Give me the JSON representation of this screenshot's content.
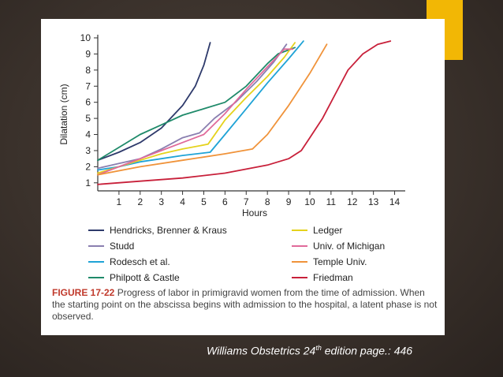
{
  "slide": {
    "citation_prefix": "Williams Obstetrics 24",
    "citation_sup": "th",
    "citation_suffix": " edition  page.: 446",
    "accent_color": "#f2b705"
  },
  "figure": {
    "label": "FIGURE 17-22",
    "caption": "Progress of labor in primigravid women from the time of admission. When the starting point on the abscissa begins with admission to the hospital, a latent phase is not observed."
  },
  "chart_data": {
    "type": "line",
    "xlabel": "Hours",
    "ylabel": "Dilatation (cm)",
    "xlim": [
      0,
      14.5
    ],
    "ylim": [
      0.5,
      10
    ],
    "x_ticks": [
      1,
      2,
      3,
      4,
      5,
      6,
      7,
      8,
      9,
      10,
      11,
      12,
      13,
      14
    ],
    "y_ticks": [
      1,
      2,
      3,
      4,
      5,
      6,
      7,
      8,
      9,
      10
    ],
    "grid": false,
    "legend_position": "bottom",
    "series": [
      {
        "name": "Hendricks, Brenner & Kraus",
        "color": "#2e3a6b",
        "points": [
          [
            0,
            2.4
          ],
          [
            1,
            2.9
          ],
          [
            2,
            3.5
          ],
          [
            3,
            4.4
          ],
          [
            4,
            5.8
          ],
          [
            4.6,
            7.0
          ],
          [
            5.0,
            8.3
          ],
          [
            5.3,
            9.7
          ]
        ]
      },
      {
        "name": "Studd",
        "color": "#8a7fb0",
        "points": [
          [
            0,
            1.9
          ],
          [
            1,
            2.2
          ],
          [
            2,
            2.5
          ],
          [
            3,
            3.1
          ],
          [
            4,
            3.8
          ],
          [
            4.8,
            4.1
          ],
          [
            5.5,
            5.0
          ],
          [
            6.5,
            6.0
          ],
          [
            7.5,
            7.3
          ],
          [
            8.3,
            8.5
          ],
          [
            8.9,
            9.6
          ]
        ]
      },
      {
        "name": "Rodesch et al.",
        "color": "#1fa3d6",
        "points": [
          [
            0,
            1.8
          ],
          [
            1,
            2.0
          ],
          [
            2,
            2.3
          ],
          [
            3,
            2.5
          ],
          [
            4,
            2.7
          ],
          [
            5.3,
            2.9
          ],
          [
            6,
            4.0
          ],
          [
            7,
            5.6
          ],
          [
            8,
            7.2
          ],
          [
            9,
            8.7
          ],
          [
            9.7,
            9.8
          ]
        ]
      },
      {
        "name": "Philpott & Castle",
        "color": "#1f8a6a",
        "points": [
          [
            0,
            2.4
          ],
          [
            1,
            3.2
          ],
          [
            2,
            4.0
          ],
          [
            3,
            4.6
          ],
          [
            4,
            5.2
          ],
          [
            5,
            5.6
          ],
          [
            6,
            6.0
          ],
          [
            7,
            7.0
          ],
          [
            8,
            8.4
          ],
          [
            8.5,
            9.0
          ],
          [
            9.3,
            9.4
          ]
        ]
      },
      {
        "name": "Ledger",
        "color": "#e5d21c",
        "points": [
          [
            0,
            1.6
          ],
          [
            1,
            2.0
          ],
          [
            2,
            2.4
          ],
          [
            3,
            2.8
          ],
          [
            4,
            3.1
          ],
          [
            5.2,
            3.4
          ],
          [
            6,
            4.9
          ],
          [
            7,
            6.3
          ],
          [
            8,
            7.6
          ],
          [
            8.8,
            8.8
          ],
          [
            9.3,
            9.7
          ]
        ]
      },
      {
        "name": "Univ. of Michigan",
        "color": "#e06a9a",
        "points": [
          [
            0,
            1.5
          ],
          [
            1,
            2.0
          ],
          [
            2,
            2.5
          ],
          [
            3,
            3.0
          ],
          [
            4,
            3.5
          ],
          [
            5,
            4.0
          ],
          [
            6,
            5.3
          ],
          [
            7,
            6.8
          ],
          [
            8,
            8.2
          ],
          [
            8.8,
            9.3
          ],
          [
            9.2,
            9.3
          ]
        ]
      },
      {
        "name": "Temple Univ.",
        "color": "#f0933a",
        "points": [
          [
            0,
            1.5
          ],
          [
            2,
            2.0
          ],
          [
            4,
            2.4
          ],
          [
            6,
            2.8
          ],
          [
            7.3,
            3.1
          ],
          [
            8,
            4.0
          ],
          [
            9,
            5.8
          ],
          [
            10,
            7.8
          ],
          [
            10.8,
            9.6
          ]
        ]
      },
      {
        "name": "Friedman",
        "color": "#c8203a",
        "points": [
          [
            0,
            0.9
          ],
          [
            2,
            1.1
          ],
          [
            4,
            1.3
          ],
          [
            6,
            1.6
          ],
          [
            8,
            2.1
          ],
          [
            9,
            2.5
          ],
          [
            9.6,
            3.0
          ],
          [
            10,
            3.8
          ],
          [
            10.6,
            5.0
          ],
          [
            11.2,
            6.5
          ],
          [
            11.8,
            8.0
          ],
          [
            12.5,
            9.0
          ],
          [
            13.2,
            9.6
          ],
          [
            13.8,
            9.8
          ]
        ]
      }
    ]
  }
}
